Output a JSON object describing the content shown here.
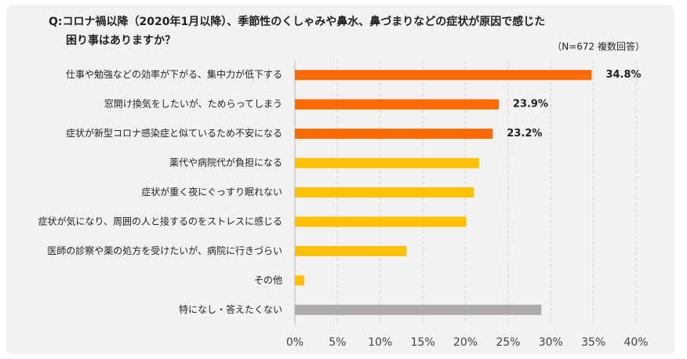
{
  "chart_data": {
    "type": "bar",
    "orientation": "horizontal",
    "title": [
      "Q:コロナ禍以降（2020年1月以降）、季節性のくしゃみや鼻水、鼻づまりなどの症状が原因で感じた",
      "困り事はありますか？"
    ],
    "subtitle": "（N=672 複数回答）",
    "categories": [
      "仕事や勉強などの効率が下がる、集中力が低下する",
      "窓開け換気をしたいが、ためらってしまう",
      "症状が新型コロナ感染症と似ているため不安になる",
      "薬代や病院代が負担になる",
      "症状が重く夜にぐっすり眠れない",
      "症状が気になり、周囲の人と接するのをストレスに感じる",
      "医師の診察や薬の処方を受けたいが、病院に行きづらい",
      "その他",
      "特になし・答えたくない"
    ],
    "values": [
      34.8,
      23.9,
      23.2,
      21.6,
      21.0,
      20.1,
      13.1,
      1.1,
      28.9
    ],
    "value_labels": [
      "34.8%",
      "23.9%",
      "23.2%",
      null,
      null,
      null,
      null,
      null,
      null
    ],
    "colors": [
      "#ff6a00",
      "#ff6a00",
      "#ff6a00",
      "#ffc000",
      "#ffc000",
      "#ffc000",
      "#ffc000",
      "#ffc000",
      "#aeaaaa"
    ],
    "xlim": [
      0,
      40
    ],
    "xticks": [
      {
        "value": 0,
        "label": "0%"
      },
      {
        "value": 5,
        "label": "5%"
      },
      {
        "value": 10,
        "label": "10%"
      },
      {
        "value": 15,
        "label": "15%"
      },
      {
        "value": 20,
        "label": "20%"
      },
      {
        "value": 25,
        "label": "25%"
      },
      {
        "value": 30,
        "label": "30%"
      },
      {
        "value": 35,
        "label": "35%"
      },
      {
        "value": 40,
        "label": "40%"
      }
    ],
    "grid": true
  }
}
